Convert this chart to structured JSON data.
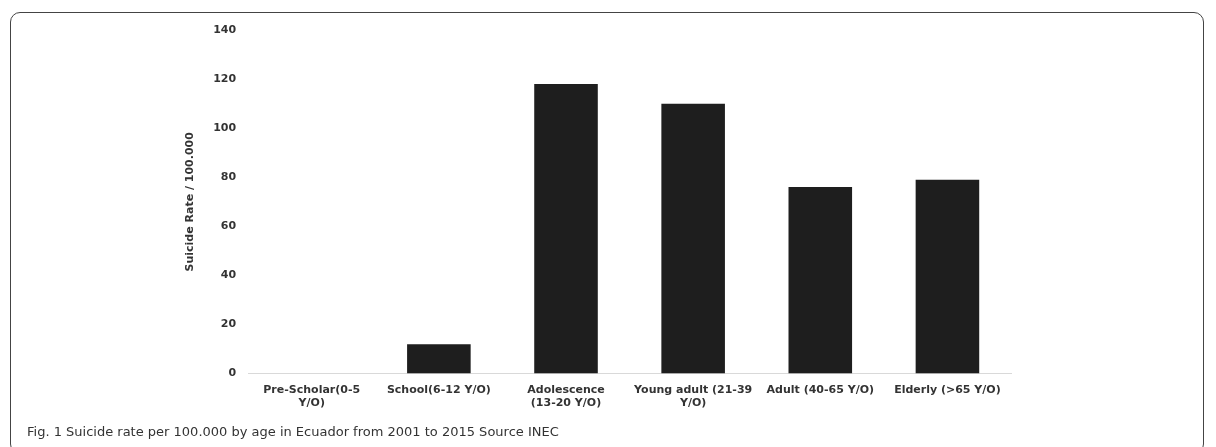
{
  "chart_data": {
    "type": "bar",
    "categories": [
      "Pre-Scholar(0-5 Y/O)",
      "School(6-12 Y/O)",
      "Adolescence (13-20 Y/O)",
      "Young adult (21-39 Y/O)",
      "Adult (40-65 Y/O)",
      "Elderly (>65 Y/O)"
    ],
    "values": [
      0,
      12,
      118,
      110,
      76,
      79
    ],
    "color": "#1e1e1e",
    "ylabel": "Suicide Rate / 100.000",
    "ylim": [
      0,
      140
    ],
    "yticks": [
      0,
      20,
      40,
      60,
      80,
      100,
      120,
      140
    ],
    "grid": false,
    "legend": false,
    "annotations": [
      "Fig. 1 Suicide rate per 100.000 by age in Ecuador from 2001 to 2015 Source INEC"
    ]
  }
}
